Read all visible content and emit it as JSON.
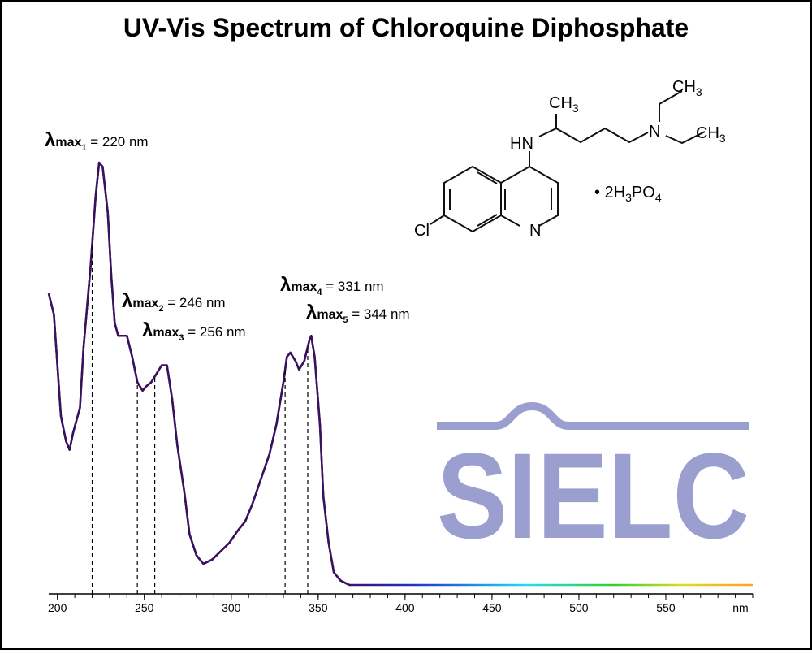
{
  "chart_data": {
    "type": "line",
    "title": "UV-Vis Spectrum of Chloroquine Diphosphate",
    "xlabel": "nm",
    "x": [
      195,
      198,
      200,
      202,
      205,
      207,
      209,
      213,
      215,
      219,
      222,
      224,
      226,
      229,
      231,
      233,
      235,
      237,
      240,
      243,
      246,
      249,
      251,
      254,
      257,
      260,
      263,
      266,
      269,
      273,
      276,
      280,
      284,
      289,
      294,
      299,
      304,
      308,
      312,
      317,
      322,
      326,
      330,
      332,
      334,
      337,
      339,
      342,
      345,
      346,
      348,
      351,
      353,
      356,
      359,
      363,
      368,
      600
    ],
    "series": [
      {
        "color": "#3a1060",
        "values": [
          0.69,
          0.64,
          0.52,
          0.4,
          0.34,
          0.32,
          0.36,
          0.42,
          0.56,
          0.75,
          0.92,
          1.0,
          0.99,
          0.88,
          0.73,
          0.62,
          0.59,
          0.59,
          0.59,
          0.54,
          0.48,
          0.46,
          0.47,
          0.48,
          0.5,
          0.52,
          0.52,
          0.44,
          0.33,
          0.22,
          0.12,
          0.07,
          0.05,
          0.06,
          0.08,
          0.1,
          0.13,
          0.15,
          0.19,
          0.25,
          0.31,
          0.38,
          0.48,
          0.54,
          0.55,
          0.53,
          0.51,
          0.53,
          0.58,
          0.59,
          0.54,
          0.38,
          0.21,
          0.1,
          0.03,
          0.01,
          0,
          0
        ]
      }
    ],
    "xlim": [
      195,
      600
    ],
    "ylim": [
      0,
      1.2
    ],
    "xticks": [
      200,
      250,
      300,
      350,
      400,
      450,
      500,
      550
    ],
    "xminorticks": [
      200,
      210,
      220,
      230,
      240,
      250,
      260,
      270,
      280,
      290,
      300,
      310,
      320,
      330,
      340,
      350,
      360,
      370,
      380,
      390,
      400,
      410,
      420,
      430,
      440,
      450,
      460,
      470,
      480,
      490,
      500,
      510,
      520,
      530,
      540,
      550,
      560,
      570,
      580,
      590,
      600
    ],
    "annotations": [
      {
        "x": 220,
        "lambda": "λ",
        "max": "max",
        "sub": "1",
        "rest": " = 220 nm"
      },
      {
        "x": 246,
        "lambda": "λ",
        "max": "max",
        "sub": "2",
        "rest": " = 246 nm"
      },
      {
        "x": 256,
        "lambda": "λ",
        "max": "max",
        "sub": "3",
        "rest": " = 256 nm"
      },
      {
        "x": 331,
        "lambda": "λ",
        "max": "max",
        "sub": "4",
        "rest": " = 331 nm"
      },
      {
        "x": 344,
        "lambda": "λ",
        "max": "max",
        "sub": "5",
        "rest": " = 344 nm"
      }
    ]
  },
  "structure": {
    "labels": [
      [
        {
          "t": "CH"
        },
        {
          "t": "3",
          "sub": true
        }
      ],
      [
        {
          "t": "HN"
        }
      ],
      [
        {
          "t": "N"
        }
      ],
      [
        {
          "t": "CH"
        },
        {
          "t": "3",
          "sub": true
        }
      ],
      [
        {
          "t": "CH"
        },
        {
          "t": "3",
          "sub": true
        }
      ],
      [
        {
          "t": "Cl"
        }
      ],
      [
        {
          "t": "N"
        }
      ],
      [
        {
          "t": "• 2H"
        },
        {
          "t": "3",
          "sub": true
        },
        {
          "t": "PO"
        },
        {
          "t": "4",
          "sub": true
        }
      ]
    ]
  },
  "logo": "SIELC"
}
